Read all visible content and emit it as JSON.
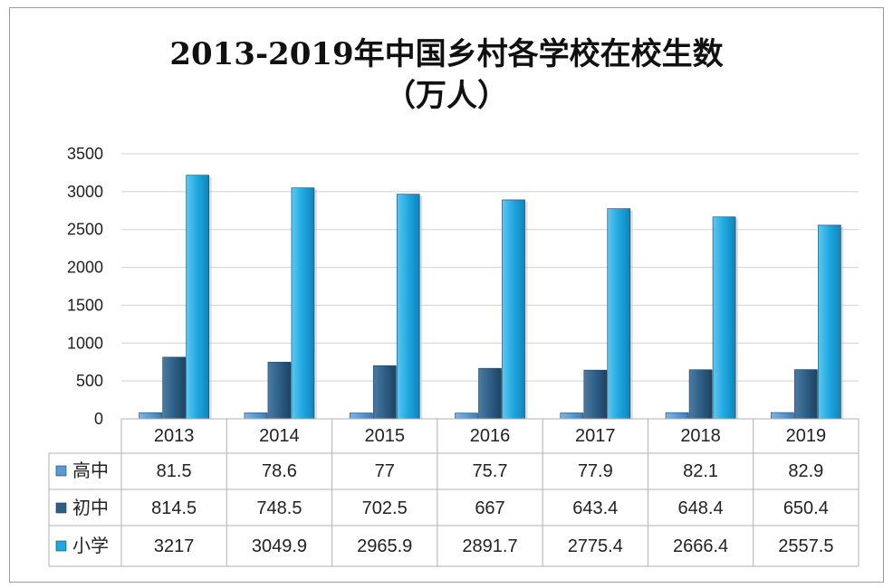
{
  "chart_data": {
    "type": "bar",
    "title": "2013-2019年中国乡村各学校在校生数",
    "subtitle": "（万人）",
    "categories": [
      "2013",
      "2014",
      "2015",
      "2016",
      "2017",
      "2018",
      "2019"
    ],
    "yticks": [
      "0",
      "500",
      "1000",
      "1500",
      "2000",
      "2500",
      "3000",
      "3500"
    ],
    "ylim": [
      0,
      3500
    ],
    "grid": true,
    "legend": "data-table",
    "series": [
      {
        "name": "高中",
        "color": "#5b9bd5",
        "values": [
          81.5,
          78.6,
          77,
          75.7,
          77.9,
          82.1,
          82.9
        ],
        "labels": [
          "81.5",
          "78.6",
          "77",
          "75.7",
          "77.9",
          "82.1",
          "82.9"
        ]
      },
      {
        "name": "初中",
        "color": "#2e5f86",
        "values": [
          814.5,
          748.5,
          702.5,
          667,
          643.4,
          648.4,
          650.4
        ],
        "labels": [
          "814.5",
          "748.5",
          "702.5",
          "667",
          "643.4",
          "648.4",
          "650.4"
        ]
      },
      {
        "name": "小学",
        "color": "#1fa7e0",
        "values": [
          3217,
          3049.9,
          2965.9,
          2891.7,
          2775.4,
          2666.4,
          2557.5
        ],
        "labels": [
          "3217",
          "3049.9",
          "2965.9",
          "2891.7",
          "2775.4",
          "2666.4",
          "2557.5"
        ]
      }
    ]
  }
}
